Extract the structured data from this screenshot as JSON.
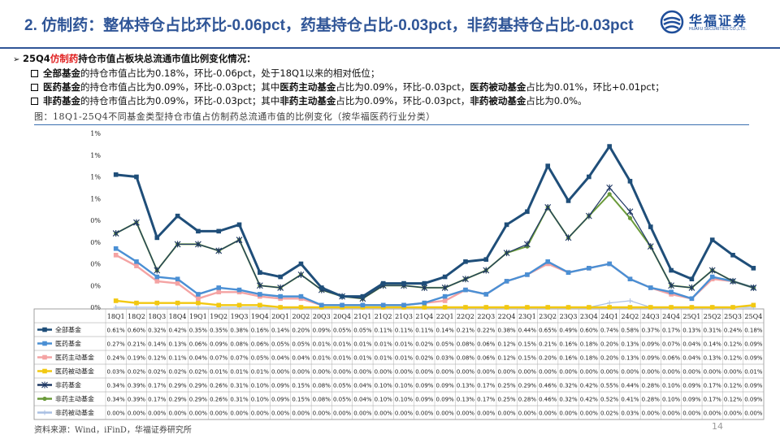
{
  "title": "2. 仿制药：整体持仓占比环比-0.06pct，药基持仓占比-0.03pct，非药基持仓占比-0.03pct",
  "logo": {
    "cn": "华福证券",
    "en": "HUAFU SECURITIES CO.,LTD."
  },
  "bullets": {
    "main": {
      "pre": "25Q4",
      "hl": "仿制药",
      "post": "持仓市值占板块总流通市值比例变化情况："
    },
    "line1": {
      "b1": "全部基金",
      "t1": "的持仓市值占比为0.18%，环比-0.06pct，处于18Q1以来的相对低位；"
    },
    "line2": {
      "b1": "医药基金",
      "t1": "的持仓市值占比为0.09%，环比-0.03pct；其中",
      "b2": "医药主动基金",
      "t2": "占比为0.09%，环比-0.03pct，",
      "b3": "医药被动基金",
      "t3": "占比为0.01%，环比+0.01pct；"
    },
    "line3": {
      "b1": "非药基金",
      "t1": "的持仓市值占比为0.09%，环比-0.03pct；其中",
      "b2": "非药主动基金",
      "t2": "占比为0.09%，环比-0.03pct，",
      "b3": "非药被动基金",
      "t3": "占比为0.0%。"
    }
  },
  "caption": "图：18Q1-25Q4不同基金类型持仓市值占仿制药总流通市值的比例变化（按华福医药行业分类）",
  "source": "资料来源：Wind，iFinD，华福证券研究所",
  "page_number": "14",
  "chart_data": {
    "type": "line",
    "categories": [
      "18Q1",
      "18Q2",
      "18Q3",
      "18Q4",
      "19Q1",
      "19Q2",
      "19Q3",
      "19Q4",
      "20Q1",
      "20Q2",
      "20Q3",
      "20Q4",
      "21Q1",
      "21Q2",
      "21Q3",
      "21Q4",
      "22Q1",
      "22Q2",
      "22Q3",
      "22Q4",
      "23Q1",
      "23Q2",
      "23Q3",
      "23Q4",
      "24Q1",
      "24Q2",
      "24Q3",
      "24Q4",
      "25Q1",
      "25Q2",
      "25Q3",
      "25Q4"
    ],
    "y_tick_labels": [
      "1%",
      "1%",
      "1%",
      "1%",
      "0%",
      "0%",
      "0%",
      "0%",
      "0%"
    ],
    "ylim": [
      0,
      0.8
    ],
    "series": [
      {
        "name": "全部基金",
        "color": "#1f4e79",
        "marker": "square",
        "labels": [
          "0.61%",
          "0.60%",
          "0.32%",
          "0.42%",
          "0.35%",
          "0.35%",
          "0.38%",
          "0.16%",
          "0.14%",
          "0.20%",
          "0.09%",
          "0.05%",
          "0.05%",
          "0.11%",
          "0.11%",
          "0.11%",
          "0.14%",
          "0.21%",
          "0.22%",
          "0.38%",
          "0.44%",
          "0.65%",
          "0.49%",
          "0.60%",
          "0.74%",
          "0.58%",
          "0.37%",
          "0.17%",
          "0.13%",
          "0.31%",
          "0.24%",
          "0.18%"
        ]
      },
      {
        "name": "医药基金",
        "color": "#4a8fd4",
        "marker": "square",
        "labels": [
          "0.27%",
          "0.21%",
          "0.14%",
          "0.13%",
          "0.06%",
          "0.09%",
          "0.08%",
          "0.06%",
          "0.05%",
          "0.05%",
          "0.01%",
          "0.01%",
          "0.01%",
          "0.01%",
          "0.01%",
          "0.02%",
          "0.05%",
          "0.08%",
          "0.06%",
          "0.12%",
          "0.15%",
          "0.21%",
          "0.16%",
          "0.18%",
          "0.20%",
          "0.13%",
          "0.09%",
          "0.07%",
          "0.04%",
          "0.14%",
          "0.12%",
          "0.09%"
        ]
      },
      {
        "name": "医药主动基金",
        "color": "#f4a3a3",
        "marker": "square",
        "labels": [
          "0.24%",
          "0.19%",
          "0.12%",
          "0.11%",
          "0.04%",
          "0.07%",
          "0.07%",
          "0.05%",
          "0.04%",
          "0.04%",
          "0.01%",
          "0.01%",
          "0.01%",
          "0.01%",
          "0.01%",
          "0.02%",
          "0.03%",
          "0.08%",
          "0.06%",
          "0.12%",
          "0.15%",
          "0.20%",
          "0.16%",
          "0.18%",
          "0.20%",
          "0.13%",
          "0.09%",
          "0.06%",
          "0.04%",
          "0.13%",
          "0.12%",
          "0.09%"
        ]
      },
      {
        "name": "医药被动基金",
        "color": "#f2c811",
        "marker": "square",
        "labels": [
          "0.03%",
          "0.02%",
          "0.02%",
          "0.02%",
          "0.02%",
          "0.01%",
          "0.01%",
          "0.01%",
          "0.00%",
          "0.00%",
          "0.00%",
          "0.00%",
          "0.00%",
          "0.00%",
          "0.00%",
          "0.00%",
          "0.00%",
          "0.00%",
          "0.00%",
          "0.00%",
          "0.00%",
          "0.00%",
          "0.00%",
          "0.00%",
          "0.00%",
          "0.00%",
          "0.00%",
          "0.00%",
          "0.00%",
          "0.00%",
          "0.00%",
          "0.01%"
        ]
      },
      {
        "name": "非药基金",
        "color": "#1f3864",
        "marker": "star",
        "labels": [
          "0.34%",
          "0.39%",
          "0.17%",
          "0.29%",
          "0.29%",
          "0.26%",
          "0.31%",
          "0.10%",
          "0.09%",
          "0.15%",
          "0.08%",
          "0.05%",
          "0.04%",
          "0.10%",
          "0.10%",
          "0.09%",
          "0.09%",
          "0.13%",
          "0.17%",
          "0.25%",
          "0.29%",
          "0.46%",
          "0.32%",
          "0.42%",
          "0.55%",
          "0.44%",
          "0.28%",
          "0.10%",
          "0.09%",
          "0.17%",
          "0.12%",
          "0.09%"
        ]
      },
      {
        "name": "非药主动基金",
        "color": "#6a9a3a",
        "marker": "circle",
        "labels": [
          "0.34%",
          "0.39%",
          "0.17%",
          "0.29%",
          "0.29%",
          "0.26%",
          "0.31%",
          "0.10%",
          "0.09%",
          "0.15%",
          "0.08%",
          "0.05%",
          "0.04%",
          "0.10%",
          "0.10%",
          "0.09%",
          "0.09%",
          "0.13%",
          "0.17%",
          "0.25%",
          "0.28%",
          "0.46%",
          "0.32%",
          "0.42%",
          "0.52%",
          "0.41%",
          "0.28%",
          "0.10%",
          "0.09%",
          "0.17%",
          "0.12%",
          "0.09%"
        ]
      },
      {
        "name": "非药被动基金",
        "color": "#a9bfe3",
        "marker": "plus",
        "labels": [
          "0.00%",
          "0.00%",
          "0.00%",
          "0.00%",
          "0.00%",
          "0.00%",
          "0.00%",
          "0.00%",
          "0.00%",
          "0.00%",
          "0.00%",
          "0.00%",
          "0.00%",
          "0.00%",
          "0.00%",
          "0.00%",
          "0.00%",
          "0.00%",
          "0.00%",
          "0.00%",
          "0.00%",
          "0.00%",
          "0.00%",
          "0.00%",
          "0.02%",
          "0.03%",
          "0.00%",
          "0.00%",
          "0.00%",
          "0.00%",
          "0.00%",
          "0.00%"
        ]
      }
    ]
  }
}
